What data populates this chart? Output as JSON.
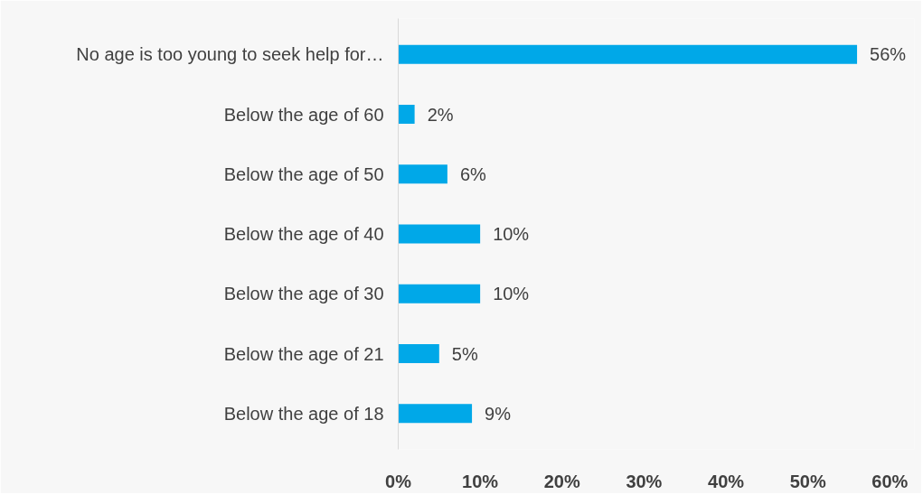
{
  "chart_data": {
    "type": "bar",
    "orientation": "horizontal",
    "categories": [
      "No age is too young to seek help for…",
      "Below the age of 60",
      "Below the age of 50",
      "Below the age of 40",
      "Below the age of 30",
      "Below the age of 21",
      "Below the age of 18"
    ],
    "values": [
      56,
      2,
      6,
      10,
      10,
      5,
      9
    ],
    "value_labels": [
      "56%",
      "2%",
      "6%",
      "10%",
      "10%",
      "5%",
      "9%"
    ],
    "color": "#00a8e8",
    "xlim": [
      0,
      63
    ],
    "xticks": [
      {
        "value": 0,
        "label": "0%"
      },
      {
        "value": 10,
        "label": "10%"
      },
      {
        "value": 20,
        "label": "20%"
      },
      {
        "value": 30,
        "label": "30%"
      },
      {
        "value": 40,
        "label": "40%"
      },
      {
        "value": 50,
        "label": "50%"
      },
      {
        "value": 60,
        "label": "60%"
      }
    ],
    "grid": false
  }
}
